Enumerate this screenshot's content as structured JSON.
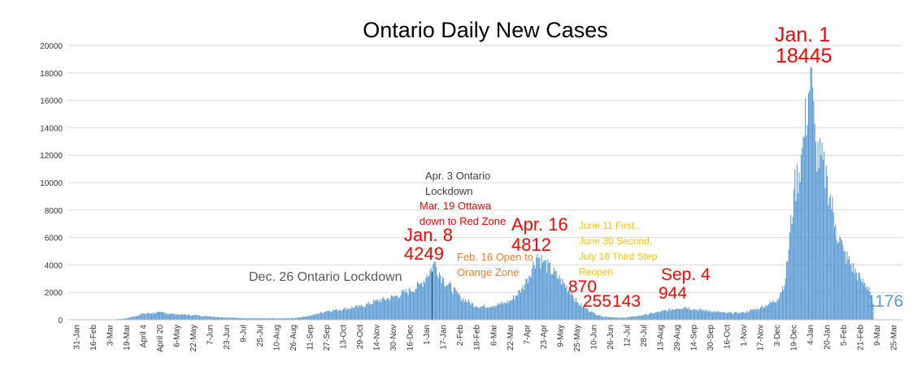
{
  "chart_data": {
    "type": "bar",
    "title": "Ontario Daily New Cases",
    "xlabel": "",
    "ylabel": "",
    "ylim": [
      0,
      20000
    ],
    "y_ticks": [
      0,
      2000,
      4000,
      6000,
      8000,
      10000,
      12000,
      14000,
      16000,
      18000,
      20000
    ],
    "grid": true,
    "legend": "none",
    "bar_color": "#5b9bd5",
    "x_tick_labels": [
      "31-Jan",
      "16-Feb",
      "3-Mar",
      "19-Mar",
      "April 4",
      "April 20",
      "6-May",
      "22-May",
      "7-Jun",
      "23-Jun",
      "9-Jul",
      "25-Jul",
      "10-Aug",
      "26-Aug",
      "11-Sep",
      "27-Sep",
      "13-Oct",
      "29-Oct",
      "14-Nov",
      "30-Nov",
      "16-Dec",
      "1-Jan",
      "17-Jan",
      "2-Feb",
      "18-Feb",
      "6-Mar",
      "22-Mar",
      "7-Apr",
      "23-Apr",
      "9-May",
      "25-May",
      "10-Jun",
      "26-Jun",
      "12-Jul",
      "28-Jul",
      "13-Aug",
      "29-Aug",
      "14-Sep",
      "30-Sep",
      "16-Oct",
      "1-Nov",
      "17-Nov",
      "3-Dec",
      "19-Dec",
      "4-Jan",
      "20-Jan",
      "5-Feb",
      "21-Feb",
      "9-Mar",
      "25-Mar"
    ],
    "series_keypoints": [
      {
        "x": 0,
        "y": 0
      },
      {
        "x": 2,
        "y": 0
      },
      {
        "x": 3,
        "y": 100
      },
      {
        "x": 4,
        "y": 450
      },
      {
        "x": 5,
        "y": 550
      },
      {
        "x": 6,
        "y": 400
      },
      {
        "x": 7,
        "y": 350
      },
      {
        "x": 8,
        "y": 250
      },
      {
        "x": 9,
        "y": 170
      },
      {
        "x": 10,
        "y": 120
      },
      {
        "x": 11,
        "y": 110
      },
      {
        "x": 12,
        "y": 100
      },
      {
        "x": 13,
        "y": 120
      },
      {
        "x": 14,
        "y": 300
      },
      {
        "x": 15,
        "y": 650
      },
      {
        "x": 16,
        "y": 800
      },
      {
        "x": 17,
        "y": 1000
      },
      {
        "x": 18,
        "y": 1400
      },
      {
        "x": 19,
        "y": 1700
      },
      {
        "x": 20,
        "y": 2200
      },
      {
        "x": 20.6,
        "y": 2600
      },
      {
        "x": 21,
        "y": 3300
      },
      {
        "x": 21.45,
        "y": 4249
      },
      {
        "x": 22,
        "y": 3000
      },
      {
        "x": 23,
        "y": 1700
      },
      {
        "x": 24,
        "y": 1000
      },
      {
        "x": 25,
        "y": 1050
      },
      {
        "x": 26,
        "y": 1400
      },
      {
        "x": 26.7,
        "y": 2300
      },
      {
        "x": 27,
        "y": 3000
      },
      {
        "x": 27.6,
        "y": 4812
      },
      {
        "x": 28,
        "y": 4300
      },
      {
        "x": 29,
        "y": 3000
      },
      {
        "x": 29.7,
        "y": 2000
      },
      {
        "x": 30,
        "y": 1300
      },
      {
        "x": 30.5,
        "y": 870
      },
      {
        "x": 31,
        "y": 500
      },
      {
        "x": 31.5,
        "y": 255
      },
      {
        "x": 32,
        "y": 200
      },
      {
        "x": 32.5,
        "y": 143
      },
      {
        "x": 33,
        "y": 180
      },
      {
        "x": 34,
        "y": 350
      },
      {
        "x": 35,
        "y": 600
      },
      {
        "x": 36,
        "y": 850
      },
      {
        "x": 36.5,
        "y": 944
      },
      {
        "x": 37,
        "y": 800
      },
      {
        "x": 38,
        "y": 650
      },
      {
        "x": 39,
        "y": 500
      },
      {
        "x": 40,
        "y": 550
      },
      {
        "x": 41,
        "y": 900
      },
      {
        "x": 42,
        "y": 1500
      },
      {
        "x": 42.5,
        "y": 3000
      },
      {
        "x": 43,
        "y": 9500
      },
      {
        "x": 43.5,
        "y": 12500
      },
      {
        "x": 44,
        "y": 18445
      },
      {
        "x": 44.3,
        "y": 13000
      },
      {
        "x": 45,
        "y": 10500
      },
      {
        "x": 45.5,
        "y": 7000
      },
      {
        "x": 46,
        "y": 5000
      },
      {
        "x": 47,
        "y": 3000
      },
      {
        "x": 47.5,
        "y": 2400
      },
      {
        "x": 47.75,
        "y": 1176
      }
    ],
    "annotations": [
      {
        "id": "jan8_label",
        "text": "Jan. 8",
        "color": "#ff0000"
      },
      {
        "id": "jan8_value",
        "text": "4249",
        "color": "#ff0000"
      },
      {
        "id": "dec26",
        "text": "Dec. 26 Ontario Lockdown",
        "color": "#595959"
      },
      {
        "id": "apr3_line1",
        "text": "Apr. 3 Ontario",
        "color": "#404040"
      },
      {
        "id": "apr3_line2",
        "text": "Lockdown",
        "color": "#404040"
      },
      {
        "id": "mar19_line1",
        "text": "Mar. 19 Ottawa",
        "color": "#ff0000"
      },
      {
        "id": "mar19_line2",
        "text": "down to Red Zone",
        "color": "#ff0000"
      },
      {
        "id": "feb16_line1",
        "text": "Feb. 16 Open to",
        "color": "#ed7d31"
      },
      {
        "id": "feb16_line2",
        "text": "Orange Zone",
        "color": "#ed7d31"
      },
      {
        "id": "apr16_label",
        "text": "Apr. 16",
        "color": "#ff0000"
      },
      {
        "id": "apr16_value",
        "text": "4812",
        "color": "#ff0000"
      },
      {
        "id": "jun11_line1",
        "text": "June 11 First ,",
        "color": "#ffc000"
      },
      {
        "id": "jun11_line2",
        "text": "June 30 Second,",
        "color": "#ffc000"
      },
      {
        "id": "jun11_line3",
        "text": "July 16 Third Step",
        "color": "#ffc000"
      },
      {
        "id": "jun11_line4",
        "text": "Reopen",
        "color": "#ffc000"
      },
      {
        "id": "v870",
        "text": "870",
        "color": "#ff0000"
      },
      {
        "id": "v255",
        "text": "255",
        "color": "#ff0000"
      },
      {
        "id": "v143",
        "text": "143",
        "color": "#ff0000"
      },
      {
        "id": "sep4_label",
        "text": "Sep. 4",
        "color": "#ff0000"
      },
      {
        "id": "sep4_value",
        "text": "944",
        "color": "#ff0000"
      },
      {
        "id": "jan1_label",
        "text": "Jan. 1",
        "color": "#ff0000"
      },
      {
        "id": "jan1_value",
        "text": "18445",
        "color": "#ff0000"
      },
      {
        "id": "last_value",
        "text": "1176",
        "color": "#5b9bd5"
      }
    ]
  }
}
